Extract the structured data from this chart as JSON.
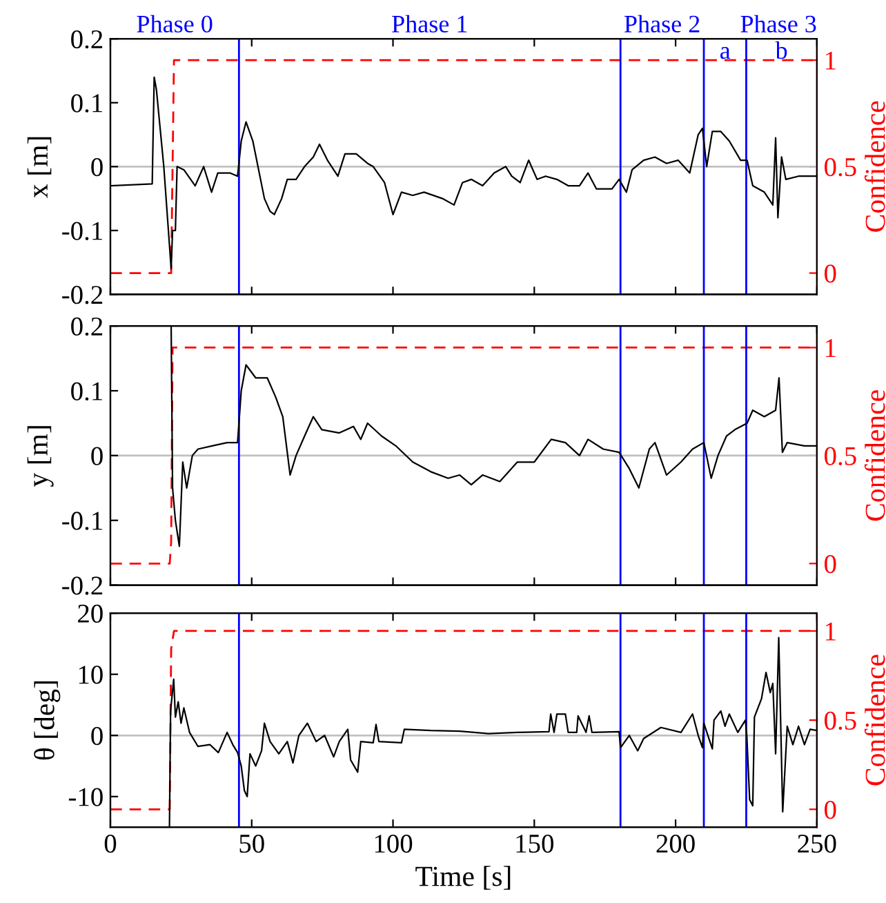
{
  "chart_data": [
    {
      "type": "line",
      "ylabel": "x [m]",
      "y2label": "Confidence",
      "xlim": [
        0,
        250
      ],
      "xticks": [
        0,
        50,
        100,
        150,
        200,
        250
      ],
      "ylim": [
        -0.2,
        0.2
      ],
      "yticks": [
        -0.2,
        -0.1,
        0,
        0.1,
        0.2
      ],
      "y2lim": [
        -0.1,
        1.1
      ],
      "y2ticks": [
        0,
        0.5,
        1
      ],
      "tick_labels": "y",
      "legend": false,
      "grid": false,
      "annotations": [
        "Phase 0",
        "Phase 1",
        "Phase 2",
        "Phase 3",
        "a",
        "b"
      ],
      "ref_lines": [
        {
          "axis": "y",
          "value": 0,
          "color": "#c0c0c0"
        },
        {
          "axis": "x",
          "value": 45.5,
          "color": "#0000ff"
        },
        {
          "axis": "x",
          "value": 180.5,
          "color": "#0000ff"
        },
        {
          "axis": "x",
          "value": 210,
          "color": "#0000ff"
        },
        {
          "axis": "x",
          "value": 225,
          "color": "#0000ff"
        }
      ],
      "series": [
        {
          "color": "#000000",
          "x": [
            0,
            14.8,
            15.5,
            16.3,
            18.9,
            21.5,
            22,
            23,
            23.6,
            26,
            30,
            33,
            35.8,
            38,
            42.3,
            45,
            46.3,
            48,
            50.4,
            54.5,
            56.5,
            58,
            60.6,
            62.6,
            65.7,
            68.7,
            71.8,
            74,
            76.8,
            80.5,
            83,
            87,
            91,
            93,
            97,
            100,
            103,
            107,
            111,
            117.5,
            121.6,
            124.6,
            127.7,
            131.7,
            135.8,
            139.9,
            142,
            145,
            148,
            151,
            154,
            158,
            162,
            166,
            169,
            172,
            177.5,
            180,
            182.6,
            184.6,
            188.7,
            192.7,
            196.8,
            200.9,
            205,
            208,
            209.5,
            211,
            213,
            216,
            219,
            223,
            225.3,
            227.3,
            231.4,
            234.4,
            235.4,
            236.2,
            237.5,
            239,
            243.5,
            249.6
          ],
          "values": [
            -0.03,
            -0.027,
            0.14,
            0.12,
            0.0,
            -0.16,
            -0.1,
            -0.1,
            0.0,
            -0.005,
            -0.03,
            0.0,
            -0.04,
            -0.01,
            -0.01,
            -0.015,
            0.04,
            0.07,
            0.04,
            -0.05,
            -0.07,
            -0.075,
            -0.05,
            -0.02,
            -0.02,
            0.0,
            0.015,
            0.035,
            0.01,
            -0.015,
            0.02,
            0.02,
            0.005,
            0.0,
            -0.025,
            -0.075,
            -0.04,
            -0.045,
            -0.04,
            -0.05,
            -0.06,
            -0.025,
            -0.02,
            -0.03,
            -0.01,
            0.0,
            -0.015,
            -0.025,
            0.01,
            -0.02,
            -0.015,
            -0.02,
            -0.03,
            -0.03,
            -0.01,
            -0.035,
            -0.035,
            -0.02,
            -0.04,
            -0.005,
            0.01,
            0.015,
            0.005,
            0.01,
            -0.01,
            0.05,
            0.06,
            0.0,
            0.055,
            0.055,
            0.04,
            0.01,
            0.01,
            -0.03,
            -0.04,
            -0.06,
            0.045,
            -0.08,
            0.015,
            -0.02,
            -0.015,
            -0.015
          ]
        },
        {
          "color": "#ff0000",
          "axis": "y2",
          "line_style": "dashed",
          "x": [
            0,
            21.5,
            22.5,
            250
          ],
          "values": [
            0,
            0,
            1,
            1
          ]
        }
      ]
    },
    {
      "type": "line",
      "ylabel": "y [m]",
      "y2label": "Confidence",
      "xlim": [
        0,
        250
      ],
      "xticks": [
        0,
        50,
        100,
        150,
        200,
        250
      ],
      "ylim": [
        -0.2,
        0.2
      ],
      "yticks": [
        -0.2,
        -0.1,
        0,
        0.1,
        0.2
      ],
      "y2lim": [
        -0.1,
        1.1
      ],
      "y2ticks": [
        0,
        0.5,
        1
      ],
      "tick_labels": "y",
      "legend": false,
      "grid": false,
      "ref_lines": [
        {
          "axis": "y",
          "value": 0,
          "color": "#c0c0c0"
        },
        {
          "axis": "x",
          "value": 45.5,
          "color": "#0000ff"
        },
        {
          "axis": "x",
          "value": 180.5,
          "color": "#0000ff"
        },
        {
          "axis": "x",
          "value": 210,
          "color": "#0000ff"
        },
        {
          "axis": "x",
          "value": 225,
          "color": "#0000ff"
        }
      ],
      "series": [
        {
          "color": "#000000",
          "x": [
            21.5,
            22,
            23,
            24.4,
            25.6,
            27,
            29,
            31,
            36,
            41.3,
            45,
            46.3,
            48,
            51.4,
            55.5,
            58.5,
            61,
            63.6,
            65.7,
            68.7,
            71.8,
            74.8,
            81,
            86,
            88.6,
            91,
            96,
            101,
            107,
            113.4,
            119.5,
            123.6,
            127.7,
            131.7,
            137.8,
            144,
            150,
            156,
            161,
            166,
            169,
            174.4,
            180,
            183.6,
            187,
            190.7,
            192.7,
            196.8,
            201.9,
            206,
            210,
            212.6,
            215,
            218,
            221,
            225.3,
            227.3,
            231.4,
            235.4,
            236.6,
            237.8,
            239.5,
            245.6,
            249.6
          ],
          "values": [
            0.2,
            -0.05,
            -0.1,
            -0.14,
            -0.01,
            -0.05,
            0.0,
            0.01,
            0.015,
            0.02,
            0.02,
            0.1,
            0.14,
            0.12,
            0.12,
            0.09,
            0.06,
            -0.03,
            0.0,
            0.03,
            0.06,
            0.04,
            0.035,
            0.045,
            0.025,
            0.05,
            0.03,
            0.015,
            -0.01,
            -0.025,
            -0.035,
            -0.03,
            -0.045,
            -0.03,
            -0.04,
            -0.01,
            -0.01,
            0.025,
            0.02,
            0.0,
            0.025,
            0.01,
            0.005,
            -0.02,
            -0.05,
            0.01,
            0.02,
            -0.03,
            -0.01,
            0.01,
            0.02,
            -0.035,
            0.0,
            0.03,
            0.04,
            0.05,
            0.07,
            0.06,
            0.07,
            0.12,
            0.005,
            0.02,
            0.015,
            0.015
          ]
        },
        {
          "color": "#ff0000",
          "axis": "y2",
          "line_style": "dashed",
          "x": [
            0,
            21,
            21.5,
            22,
            250
          ],
          "values": [
            0,
            0,
            0.1,
            1,
            1
          ]
        }
      ]
    },
    {
      "type": "line",
      "ylabel": "θ [deg]",
      "y2label": "Confidence",
      "xlabel": "Time [s]",
      "xlim": [
        0,
        250
      ],
      "xticks": [
        0,
        50,
        100,
        150,
        200,
        250
      ],
      "ylim": [
        -15,
        20
      ],
      "yticks": [
        -10,
        0,
        10,
        20
      ],
      "y2lim": [
        -0.1,
        1.1
      ],
      "y2ticks": [
        0,
        0.5,
        1
      ],
      "legend": false,
      "grid": false,
      "ref_lines": [
        {
          "axis": "y",
          "value": 0,
          "color": "#c0c0c0"
        },
        {
          "axis": "x",
          "value": 45.5,
          "color": "#0000ff"
        },
        {
          "axis": "x",
          "value": 180.5,
          "color": "#0000ff"
        },
        {
          "axis": "x",
          "value": 210,
          "color": "#0000ff"
        },
        {
          "axis": "x",
          "value": 225,
          "color": "#0000ff"
        }
      ],
      "series": [
        {
          "color": "#000000",
          "x": [
            20.9,
            21.3,
            22.4,
            23,
            24,
            25,
            26,
            28,
            31,
            35.2,
            38.2,
            41.3,
            43.3,
            45,
            46.3,
            47.4,
            48.4,
            49.4,
            51.4,
            53.5,
            54.5,
            56.5,
            59.6,
            62.6,
            64.6,
            66.7,
            69.7,
            72.8,
            75.8,
            79,
            81,
            84,
            85,
            87.5,
            88.6,
            93,
            94,
            95,
            103,
            104,
            113.4,
            123.6,
            133.8,
            144,
            155.2,
            155.8,
            157,
            158,
            161,
            162,
            165,
            165.5,
            168.3,
            169.4,
            170.4,
            180,
            180.5,
            183.6,
            186.6,
            188.7,
            194.8,
            201.9,
            206,
            208,
            209.5,
            210,
            213,
            213.6,
            216,
            217.5,
            219,
            222,
            224.7,
            225.2,
            226.2,
            227.3,
            227.9,
            230.4,
            232,
            233.5,
            234.4,
            235.4,
            236.5,
            237.9,
            239.5,
            241.5,
            243.5,
            245.6,
            247.6,
            250
          ],
          "values": [
            -15,
            4,
            9.2,
            3,
            5.5,
            2,
            4.5,
            0.5,
            -1.8,
            -1.5,
            -2.8,
            0.5,
            -1.5,
            -2.8,
            -5,
            -9,
            -10,
            -3,
            -5,
            -2.5,
            2,
            -1,
            -3,
            -1,
            -4.5,
            0,
            2,
            -1,
            0,
            -3.5,
            -1,
            1,
            -4,
            -6,
            -1,
            -1.2,
            1.8,
            -1,
            -1.2,
            1,
            0.8,
            0.7,
            0.3,
            0.5,
            0.6,
            3.5,
            0.5,
            3.5,
            3.5,
            0.5,
            0.5,
            3.2,
            0.5,
            3.2,
            0.5,
            0.6,
            -2,
            0,
            -2.5,
            -0.5,
            1.3,
            0.5,
            3.5,
            0,
            -2,
            2,
            -2.2,
            2.5,
            4,
            1.5,
            3.5,
            0.5,
            2.5,
            0,
            -10.5,
            -11.5,
            3,
            6,
            10.3,
            7,
            8.5,
            -3,
            16,
            -12.5,
            1.5,
            -1.5,
            1.5,
            -1.5,
            1,
            0.8
          ]
        },
        {
          "color": "#ff0000",
          "axis": "y2",
          "line_style": "dashed",
          "x": [
            0,
            21,
            21.5,
            22.5,
            250
          ],
          "values": [
            0,
            0,
            0.9,
            1,
            1
          ]
        }
      ]
    }
  ]
}
